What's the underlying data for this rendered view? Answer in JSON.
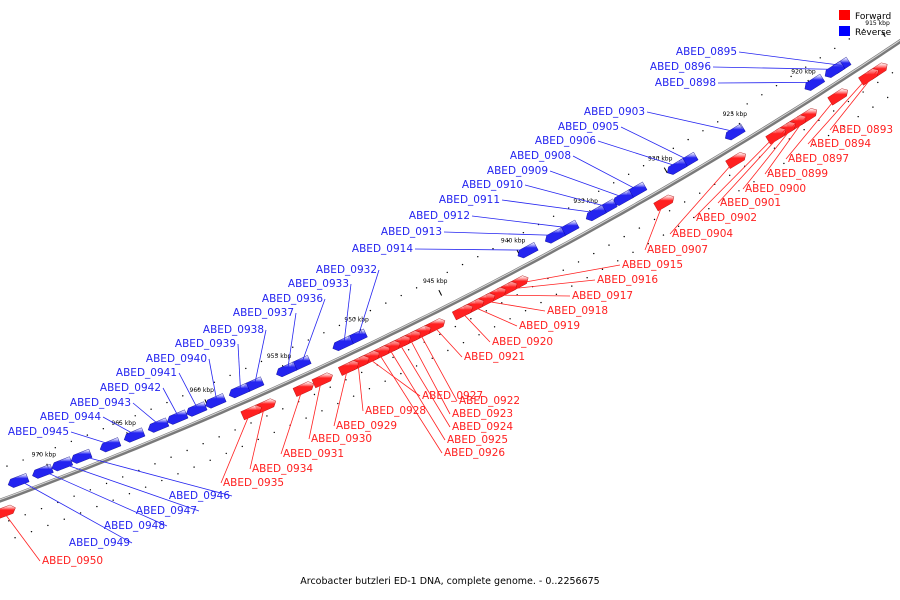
{
  "caption": "Arcobacter butzleri ED-1 DNA, complete genome. - 0..2256675",
  "legend": [
    {
      "label": "Forward",
      "color": "#ff0000"
    },
    {
      "label": "Reverse",
      "color": "#0000ff"
    }
  ],
  "colors": {
    "forward": "#ff2020",
    "reverse": "#2424f0",
    "backbone": "#7a7a7a"
  },
  "ticks": [
    "915 kbp",
    "920 kbp",
    "925 kbp",
    "930 kbp",
    "935 kbp",
    "940 kbp",
    "945 kbp",
    "950 kbp",
    "955 kbp",
    "960 kbp",
    "965 kbp",
    "970 kbp"
  ],
  "reverse_genes": [
    "ABED_0895",
    "ABED_0896",
    "ABED_0898",
    "ABED_0903",
    "ABED_0905",
    "ABED_0906",
    "ABED_0908",
    "ABED_0909",
    "ABED_0910",
    "ABED_0911",
    "ABED_0912",
    "ABED_0913",
    "ABED_0914",
    "ABED_0932",
    "ABED_0933",
    "ABED_0936",
    "ABED_0937",
    "ABED_0938",
    "ABED_0939",
    "ABED_0940",
    "ABED_0941",
    "ABED_0942",
    "ABED_0943",
    "ABED_0944",
    "ABED_0945",
    "ABED_0946",
    "ABED_0947",
    "ABED_0948",
    "ABED_0949"
  ],
  "forward_genes": [
    "ABED_0893",
    "ABED_0894",
    "ABED_0897",
    "ABED_0899",
    "ABED_0900",
    "ABED_0901",
    "ABED_0902",
    "ABED_0904",
    "ABED_0907",
    "ABED_0915",
    "ABED_0916",
    "ABED_0917",
    "ABED_0918",
    "ABED_0919",
    "ABED_0920",
    "ABED_0921",
    "ABED_0922",
    "ABED_0923",
    "ABED_0924",
    "ABED_0925",
    "ABED_0926",
    "ABED_0927",
    "ABED_0928",
    "ABED_0929",
    "ABED_0930",
    "ABED_0931",
    "ABED_0934",
    "ABED_0935",
    "ABED_0950"
  ]
}
